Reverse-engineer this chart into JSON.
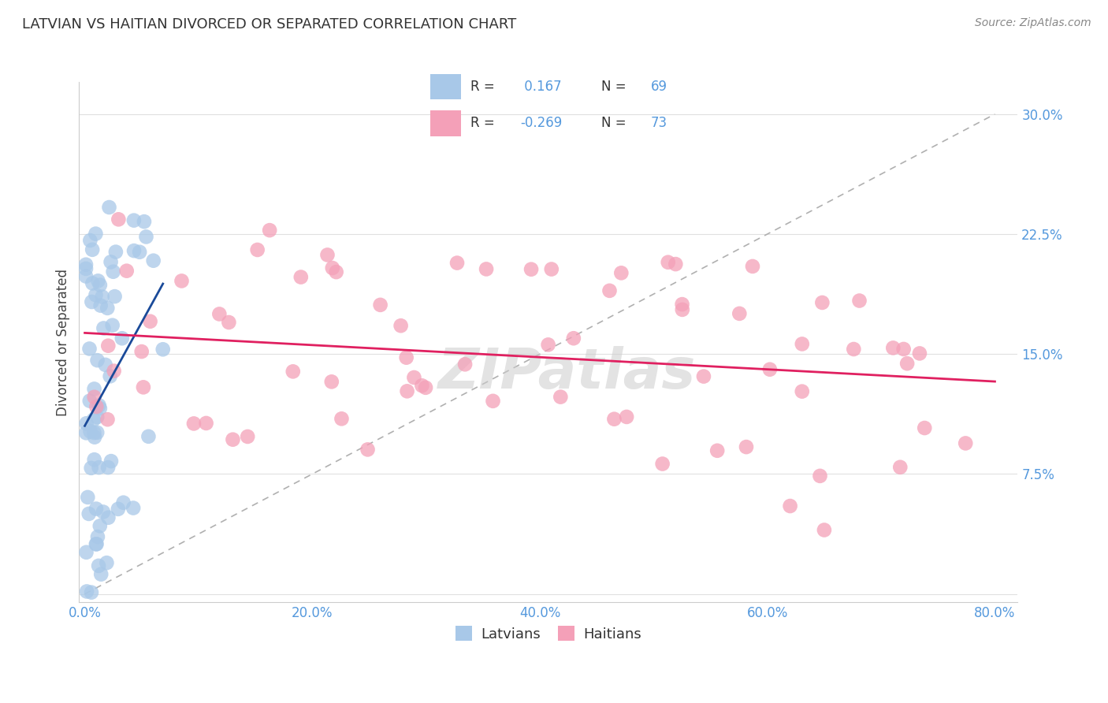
{
  "title": "LATVIAN VS HAITIAN DIVORCED OR SEPARATED CORRELATION CHART",
  "source": "Source: ZipAtlas.com",
  "ylabel": "Divorced or Separated",
  "xlabel": "",
  "xlim": [
    -0.005,
    0.82
  ],
  "ylim": [
    -0.005,
    0.32
  ],
  "xticks": [
    0.0,
    0.2,
    0.4,
    0.6,
    0.8
  ],
  "xticklabels": [
    "0.0%",
    "20.0%",
    "40.0%",
    "60.0%",
    "80.0%"
  ],
  "yticks": [
    0.0,
    0.075,
    0.15,
    0.225,
    0.3
  ],
  "yticklabels": [
    "",
    "7.5%",
    "15.0%",
    "22.5%",
    "30.0%"
  ],
  "latvian_color": "#a8c8e8",
  "haitian_color": "#f4a0b8",
  "latvian_line_color": "#1a4a99",
  "haitian_line_color": "#e02060",
  "R_latvian": 0.167,
  "N_latvian": 69,
  "R_haitian": -0.269,
  "N_haitian": 73,
  "legend_label_latvian": "Latvians",
  "legend_label_haitian": "Haitians",
  "background_color": "#ffffff",
  "grid_color": "#e0e0e0",
  "watermark_text": "ZIPatlas",
  "title_fontsize": 13,
  "tick_fontsize": 12,
  "source_fontsize": 10
}
